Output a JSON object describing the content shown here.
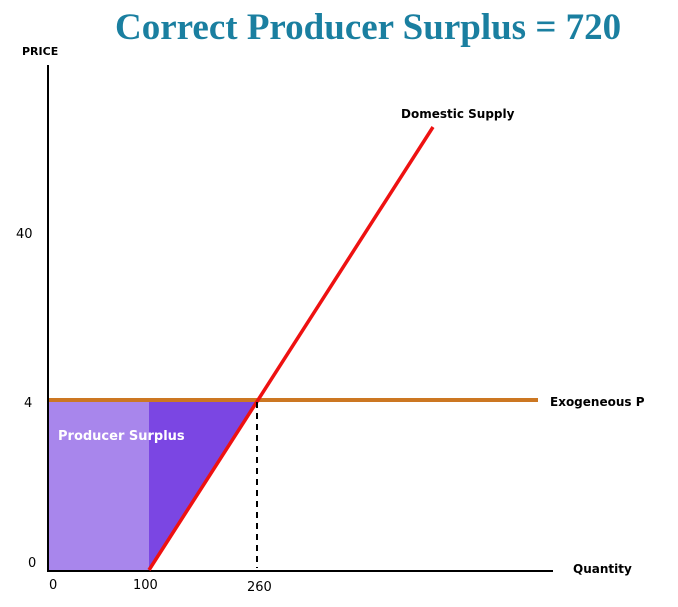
{
  "title": "Correct Producer Surplus = 720",
  "chart_data": {
    "type": "line",
    "ylabel": "PRICE",
    "xlabel": "Quantity",
    "x_ticks": [
      0,
      100,
      260
    ],
    "y_ticks": [
      0,
      4,
      40
    ],
    "series": [
      {
        "name": "Domestic Supply",
        "color": "#ee1111"
      },
      {
        "name": "Exogeneous P",
        "value": 4,
        "color": "#cc7722"
      }
    ],
    "equilibrium": {
      "x": 260,
      "y": 4
    },
    "shaded_region": {
      "label": "Producer Surplus",
      "x_from": 0,
      "x_to": 260,
      "y_from": 0,
      "y_to": 4,
      "colors": [
        "#a886ec",
        "#7b46e3"
      ]
    }
  }
}
